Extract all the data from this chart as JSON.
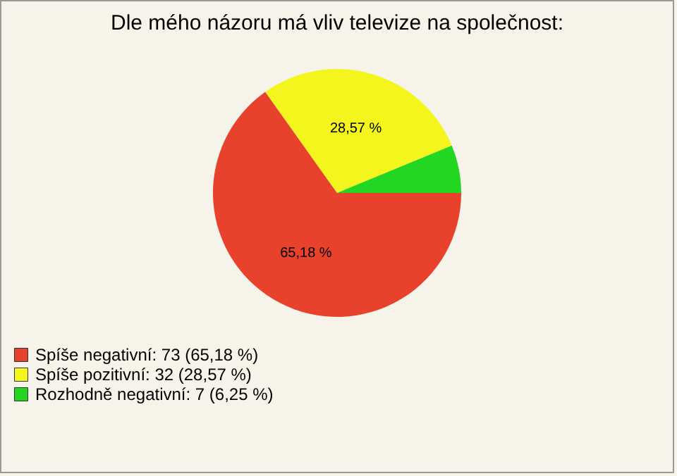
{
  "chart_data": {
    "type": "pie",
    "title": "Dle mého názoru má vliv televize na společnost:",
    "categories": [
      "Spíše negativní: 73 (65,18 %)",
      "Spíše pozitivní: 32 (28,57 %)",
      "Rozhodně negativní: 7 (6,25 %)"
    ],
    "values": [
      65.18,
      28.57,
      6.25
    ],
    "value_labels": [
      "65,18 %",
      "28,57 %",
      null
    ],
    "colors": [
      "#e8412c",
      "#f5f51e",
      "#22d622"
    ],
    "legend": "bottom left"
  }
}
